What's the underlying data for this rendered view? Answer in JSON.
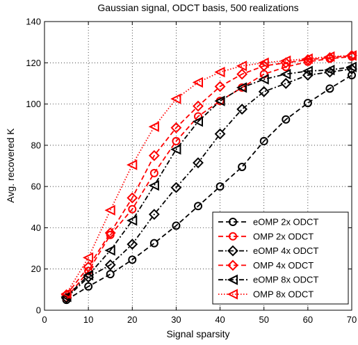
{
  "chart_data": {
    "type": "line",
    "title": "Gaussian signal, ODCT basis, 500 realizations",
    "xlabel": "Signal sparsity",
    "ylabel": "Avg. recovered K",
    "xlim": [
      0,
      70
    ],
    "ylim": [
      0,
      140
    ],
    "xticks": [
      0,
      10,
      20,
      30,
      40,
      50,
      60,
      70
    ],
    "yticks": [
      0,
      20,
      40,
      60,
      80,
      100,
      120,
      140
    ],
    "grid": true,
    "legend_position": "bottom-right",
    "x": [
      5,
      10,
      15,
      20,
      25,
      30,
      35,
      40,
      45,
      50,
      55,
      60,
      65,
      70
    ],
    "series": [
      {
        "name": "eOMP 2x ODCT",
        "color": "#000000",
        "marker": "circle",
        "dash": "dashed",
        "values": [
          5,
          11.5,
          17.5,
          24.5,
          32.5,
          41,
          50.5,
          60,
          69.5,
          82,
          92.5,
          100.5,
          107.5,
          114
        ]
      },
      {
        "name": "OMP 2x ODCT",
        "color": "#ff0000",
        "marker": "circle",
        "dash": "dashed",
        "values": [
          6,
          19,
          36.5,
          49,
          66.5,
          82,
          94,
          101.5,
          108,
          114.5,
          118,
          120.5,
          122,
          123
        ]
      },
      {
        "name": "eOMP 4x ODCT",
        "color": "#000000",
        "marker": "diamond",
        "dash": "dashdot",
        "values": [
          6,
          16,
          22,
          32,
          46.5,
          59.5,
          71.5,
          85.5,
          97.5,
          106,
          110,
          114,
          115.5,
          117
        ]
      },
      {
        "name": "OMP 4x ODCT",
        "color": "#ff0000",
        "marker": "diamond",
        "dash": "dashed",
        "values": [
          7.5,
          21,
          37.5,
          54.5,
          75,
          88.5,
          99,
          108.5,
          114.5,
          118.5,
          120,
          121.5,
          122.5,
          123.5
        ]
      },
      {
        "name": "eOMP 8x ODCT",
        "color": "#000000",
        "marker": "triangle-left",
        "dash": "dashdot",
        "values": [
          6.5,
          17,
          29,
          43.5,
          60.5,
          78,
          91.5,
          101.5,
          108,
          112,
          114.5,
          116,
          116.5,
          118
        ]
      },
      {
        "name": "OMP 8x ODCT",
        "color": "#ff0000",
        "marker": "triangle-left",
        "dash": "dotted",
        "values": [
          8,
          25.5,
          48.5,
          70.5,
          89,
          102.5,
          110.5,
          115.5,
          118.5,
          120,
          121,
          122,
          123,
          123.5
        ]
      }
    ]
  }
}
